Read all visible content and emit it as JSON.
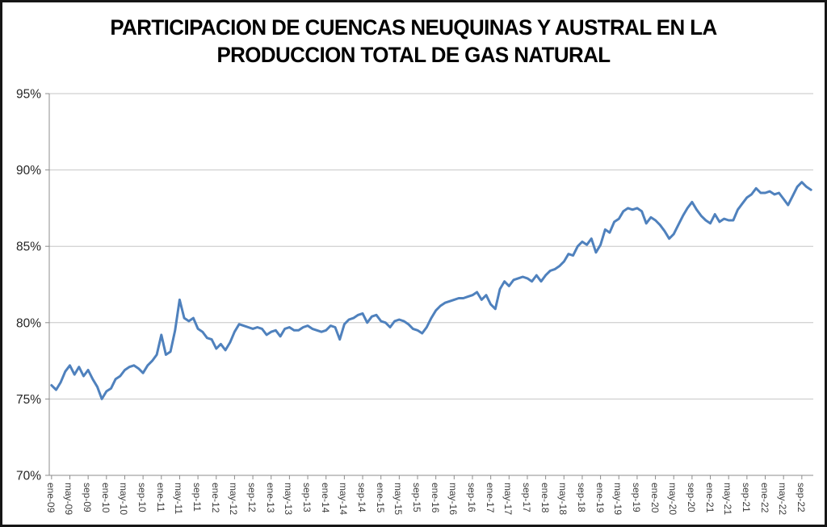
{
  "title": {
    "line1": "PARTICIPACION DE CUENCAS NEUQUINAS Y AUSTRAL EN LA",
    "line2": "PRODUCCION TOTAL DE GAS NATURAL"
  },
  "chart_data": {
    "type": "line",
    "title": "PARTICIPACION DE CUENCAS NEUQUINAS Y AUSTRAL EN LA PRODUCCION TOTAL DE GAS NATURAL",
    "xlabel": "",
    "ylabel": "",
    "ylim": [
      70,
      95
    ],
    "yticks": [
      70,
      75,
      80,
      85,
      90,
      95
    ],
    "ytick_labels": [
      "70%",
      "75%",
      "80%",
      "85%",
      "90%",
      "95%"
    ],
    "x_label_interval": 4,
    "grid": true,
    "legend": false,
    "line_color": "#4F81BD",
    "grid_color": "#C6C6C6",
    "axis_color": "#8C8C8C",
    "xlabel_color": "#3d3d3d",
    "ylabel_color": "#262626",
    "categories": [
      "ene-09",
      "feb-09",
      "mar-09",
      "abr-09",
      "may-09",
      "jun-09",
      "jul-09",
      "ago-09",
      "sep-09",
      "oct-09",
      "nov-09",
      "dic-09",
      "ene-10",
      "feb-10",
      "mar-10",
      "abr-10",
      "may-10",
      "jun-10",
      "jul-10",
      "ago-10",
      "sep-10",
      "oct-10",
      "nov-10",
      "dic-10",
      "ene-11",
      "feb-11",
      "mar-11",
      "abr-11",
      "may-11",
      "jun-11",
      "jul-11",
      "ago-11",
      "sep-11",
      "oct-11",
      "nov-11",
      "dic-11",
      "ene-12",
      "feb-12",
      "mar-12",
      "abr-12",
      "may-12",
      "jun-12",
      "jul-12",
      "ago-12",
      "sep-12",
      "oct-12",
      "nov-12",
      "dic-12",
      "ene-13",
      "feb-13",
      "mar-13",
      "abr-13",
      "may-13",
      "jun-13",
      "jul-13",
      "ago-13",
      "sep-13",
      "oct-13",
      "nov-13",
      "dic-13",
      "ene-14",
      "feb-14",
      "mar-14",
      "abr-14",
      "may-14",
      "jun-14",
      "jul-14",
      "ago-14",
      "sep-14",
      "oct-14",
      "nov-14",
      "dic-14",
      "ene-15",
      "feb-15",
      "mar-15",
      "abr-15",
      "may-15",
      "jun-15",
      "jul-15",
      "ago-15",
      "sep-15",
      "oct-15",
      "nov-15",
      "dic-15",
      "ene-16",
      "feb-16",
      "mar-16",
      "abr-16",
      "may-16",
      "jun-16",
      "jul-16",
      "ago-16",
      "sep-16",
      "oct-16",
      "nov-16",
      "dic-16",
      "ene-17",
      "feb-17",
      "mar-17",
      "abr-17",
      "may-17",
      "jun-17",
      "jul-17",
      "ago-17",
      "sep-17",
      "oct-17",
      "nov-17",
      "dic-17",
      "ene-18",
      "feb-18",
      "mar-18",
      "abr-18",
      "may-18",
      "jun-18",
      "jul-18",
      "ago-18",
      "sep-18",
      "oct-18",
      "nov-18",
      "dic-18",
      "ene-19",
      "feb-19",
      "mar-19",
      "abr-19",
      "may-19",
      "jun-19",
      "jul-19",
      "ago-19",
      "sep-19",
      "oct-19",
      "nov-19",
      "dic-19",
      "ene-20",
      "feb-20",
      "mar-20",
      "abr-20",
      "may-20",
      "jun-20",
      "jul-20",
      "ago-20",
      "sep-20",
      "oct-20",
      "nov-20",
      "dic-20",
      "ene-21",
      "feb-21",
      "mar-21",
      "abr-21",
      "may-21",
      "jun-21",
      "jul-21",
      "ago-21",
      "sep-21",
      "oct-21",
      "nov-21",
      "dic-21",
      "ene-22",
      "feb-22",
      "mar-22",
      "abr-22",
      "may-22",
      "jun-22",
      "jul-22",
      "ago-22",
      "sep-22",
      "oct-22",
      "nov-22"
    ],
    "values": [
      75.9,
      75.6,
      76.1,
      76.8,
      77.2,
      76.6,
      77.1,
      76.5,
      76.9,
      76.3,
      75.8,
      75.0,
      75.5,
      75.7,
      76.3,
      76.5,
      76.9,
      77.1,
      77.2,
      77.0,
      76.7,
      77.2,
      77.5,
      77.9,
      79.2,
      77.9,
      78.1,
      79.5,
      81.5,
      80.3,
      80.1,
      80.3,
      79.6,
      79.4,
      79.0,
      78.9,
      78.3,
      78.6,
      78.2,
      78.7,
      79.4,
      79.9,
      79.8,
      79.7,
      79.6,
      79.7,
      79.6,
      79.2,
      79.4,
      79.5,
      79.1,
      79.6,
      79.7,
      79.5,
      79.5,
      79.7,
      79.8,
      79.6,
      79.5,
      79.4,
      79.5,
      79.8,
      79.7,
      78.9,
      79.9,
      80.2,
      80.3,
      80.5,
      80.6,
      80.0,
      80.4,
      80.5,
      80.1,
      80.0,
      79.7,
      80.1,
      80.2,
      80.1,
      79.9,
      79.6,
      79.5,
      79.3,
      79.7,
      80.3,
      80.8,
      81.1,
      81.3,
      81.4,
      81.5,
      81.6,
      81.6,
      81.7,
      81.8,
      82.0,
      81.5,
      81.8,
      81.2,
      80.9,
      82.2,
      82.7,
      82.4,
      82.8,
      82.9,
      83.0,
      82.9,
      82.7,
      83.1,
      82.7,
      83.1,
      83.4,
      83.5,
      83.7,
      84.0,
      84.5,
      84.4,
      85.0,
      85.3,
      85.1,
      85.5,
      84.6,
      85.1,
      86.1,
      85.9,
      86.6,
      86.8,
      87.3,
      87.5,
      87.4,
      87.5,
      87.3,
      86.5,
      86.9,
      86.7,
      86.4,
      86.0,
      85.5,
      85.8,
      86.4,
      87.0,
      87.5,
      87.9,
      87.4,
      87.0,
      86.7,
      86.5,
      87.1,
      86.6,
      86.8,
      86.7,
      86.7,
      87.4,
      87.8,
      88.2,
      88.4,
      88.8,
      88.5,
      88.5,
      88.6,
      88.4,
      88.5,
      88.1,
      87.7,
      88.3,
      88.9,
      89.2,
      88.9,
      88.7
    ]
  }
}
